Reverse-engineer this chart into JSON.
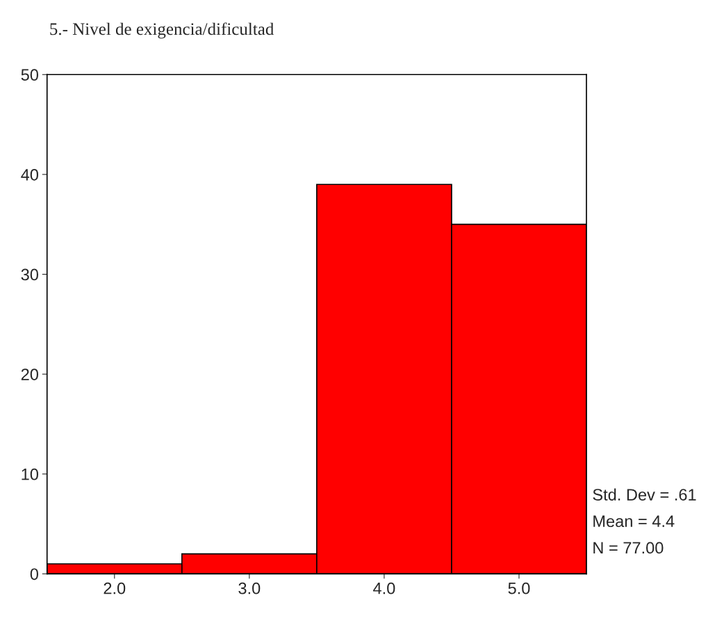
{
  "chart_data": {
    "type": "histogram",
    "title": "5.- Nivel de exigencia/dificultad",
    "bins": [
      1.5,
      2.5,
      3.5,
      4.5,
      5.5
    ],
    "values": [
      1,
      2,
      39,
      35
    ],
    "color": "#ff0000",
    "xlim": [
      1.5,
      5.5
    ],
    "xticks": [
      {
        "value": 2,
        "label": "2.0"
      },
      {
        "value": 3,
        "label": "3.0"
      },
      {
        "value": 4,
        "label": "4.0"
      },
      {
        "value": 5,
        "label": "5.0"
      }
    ],
    "ylim": [
      0,
      50
    ],
    "yticks": [
      0,
      10,
      20,
      30,
      40,
      50
    ],
    "grid": false,
    "annotations": [
      "Std. Dev = .61",
      "Mean = 4.4",
      "N = 77.00"
    ]
  }
}
